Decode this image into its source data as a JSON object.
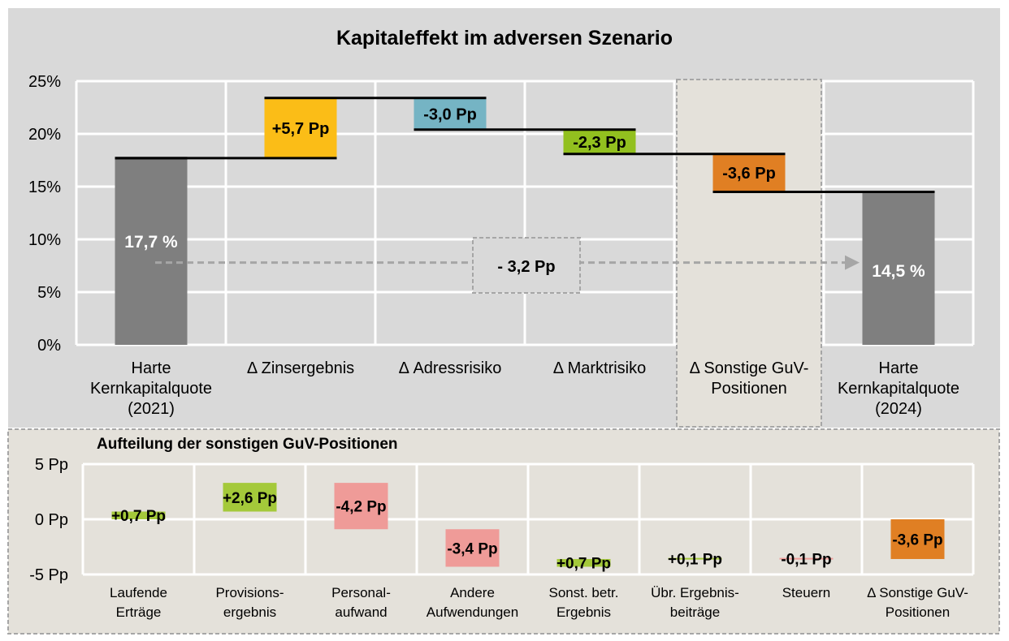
{
  "chart_data": [
    {
      "type": "waterfall",
      "title": "Kapitaleffekt im adversen Szenario",
      "ylim": [
        0,
        25
      ],
      "y_ticks": [
        "25%",
        "20%",
        "15%",
        "10%",
        "5%",
        "0%"
      ],
      "grid": true,
      "categories": [
        [
          "Harte",
          "Kernkapitalquote",
          "(2021)"
        ],
        [
          "Δ Zinsergebnis"
        ],
        [
          "Δ Adressrisiko"
        ],
        [
          "Δ Marktrisiko"
        ],
        [
          "Δ Sonstige GuV-",
          "Positionen"
        ],
        [
          "Harte",
          "Kernkapitalquote",
          "(2024)"
        ]
      ],
      "steps": [
        {
          "kind": "total",
          "value": 17.7,
          "label": "17,7 %",
          "color": "#7f7f7f"
        },
        {
          "kind": "delta",
          "value": 5.7,
          "label": "+5,7 Pp",
          "color": "#fbbd17"
        },
        {
          "kind": "delta",
          "value": -3.0,
          "label": "-3,0 Pp",
          "color": "#75b4c4"
        },
        {
          "kind": "delta",
          "value": -2.3,
          "label": "-2,3 Pp",
          "color": "#92c01f"
        },
        {
          "kind": "delta",
          "value": -3.6,
          "label": "-3,6 Pp",
          "color": "#e07f23"
        },
        {
          "kind": "total",
          "value": 14.5,
          "label": "14,5 %",
          "color": "#7f7f7f"
        }
      ],
      "overall_change": {
        "value": -3.2,
        "label": "- 3,2 Pp"
      },
      "highlighted_category": 4
    },
    {
      "type": "waterfall",
      "title": "Aufteilung der sonstigen GuV-Positionen",
      "ylim": [
        -5,
        5
      ],
      "y_ticks": [
        "5 Pp",
        "0 Pp",
        "-5 Pp"
      ],
      "categories": [
        [
          "Laufende",
          "Erträge"
        ],
        [
          "Provisions-",
          "ergebnis"
        ],
        [
          "Personal-",
          "aufwand"
        ],
        [
          "Andere",
          "Aufwendungen"
        ],
        [
          "Sonst. betr.",
          "Ergebnis"
        ],
        [
          "Übr. Ergebnis-",
          "beiträge"
        ],
        [
          "Steuern"
        ],
        [
          "Δ Sonstige GuV-",
          "Positionen"
        ]
      ],
      "steps": [
        {
          "kind": "delta",
          "value": 0.7,
          "label": "+0,7 Pp",
          "color": "#a4c93a"
        },
        {
          "kind": "delta",
          "value": 2.6,
          "label": "+2,6 Pp",
          "color": "#a4c93a"
        },
        {
          "kind": "delta",
          "value": -4.2,
          "label": "-4,2 Pp",
          "color": "#ef9b98"
        },
        {
          "kind": "delta",
          "value": -3.4,
          "label": "-3,4 Pp",
          "color": "#ef9b98"
        },
        {
          "kind": "delta",
          "value": 0.7,
          "label": "+0,7 Pp",
          "color": "#a4c93a"
        },
        {
          "kind": "delta",
          "value": 0.1,
          "label": "+0,1 Pp",
          "color": "#a4c93a"
        },
        {
          "kind": "delta",
          "value": -0.1,
          "label": "-0,1 Pp",
          "color": "#ef9b98"
        },
        {
          "kind": "total",
          "value": -3.6,
          "label": "-3,6 Pp",
          "color": "#e07f23"
        }
      ]
    }
  ]
}
